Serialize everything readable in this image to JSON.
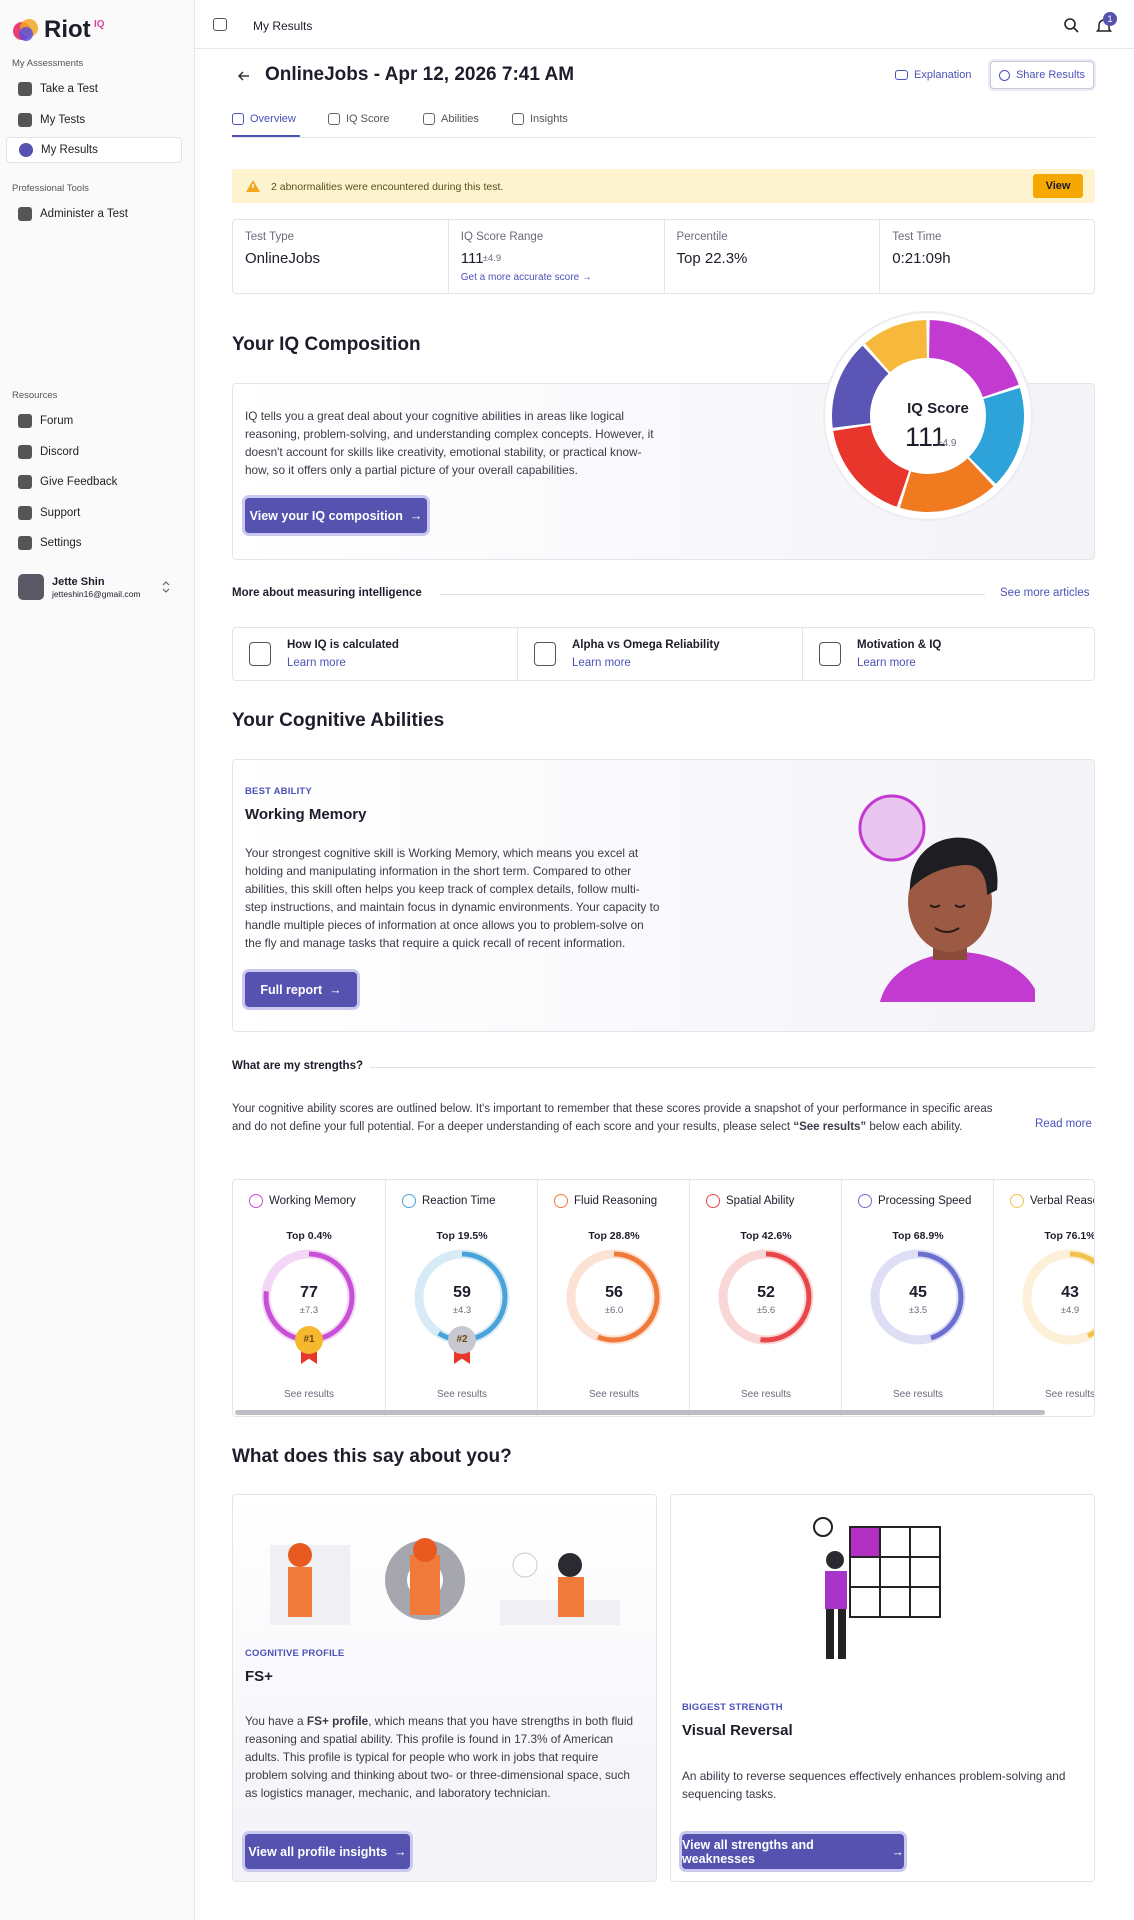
{
  "sidebar": {
    "brand": "Riot",
    "brand_suffix": "IQ",
    "sections": [
      {
        "title": "My Assessments",
        "items": [
          "Take a Test",
          "My Tests",
          "My Results"
        ]
      },
      {
        "title": "Professional Tools",
        "items": [
          "Administer a Test"
        ]
      },
      {
        "title": "Resources",
        "items": [
          "Forum",
          "Discord",
          "Give Feedback",
          "Support",
          "Settings"
        ]
      }
    ],
    "user": {
      "name": "Jette Shin",
      "email": "jetteshin16@gmail.com"
    }
  },
  "topbar": {
    "title": "My Results",
    "notifications": "1"
  },
  "header": {
    "title": "OnlineJobs - Apr 12, 2026 7:41 AM",
    "explanation": "Explanation",
    "share": "Share Results"
  },
  "tabs": [
    "Overview",
    "IQ Score",
    "Abilities",
    "Insights"
  ],
  "alert": {
    "text": "2 abnormalities were encountered during this test.",
    "button": "View"
  },
  "stats": [
    {
      "label": "Test Type",
      "value": "OnlineJobs"
    },
    {
      "label": "IQ Score Range",
      "value": "111",
      "error": "±4.9",
      "link": "Get a more accurate score"
    },
    {
      "label": "Percentile",
      "value": "Top 22.3%"
    },
    {
      "label": "Test Time",
      "value": "0:21:09h"
    }
  ],
  "composition": {
    "title": "Your IQ Composition",
    "text": "IQ tells you a great deal about your cognitive abilities in areas like logical reasoning, problem-solving, and understanding complex concepts. However, it doesn't account for skills like creativity, emotional stability, or practical know-how, so it offers only a partial picture of your overall capabilities.",
    "button": "View your IQ composition",
    "donut_label": "IQ Score",
    "score": "111",
    "error": "±4.9"
  },
  "articles": {
    "title": "More about measuring intelligence",
    "link": "See more articles",
    "items": [
      {
        "title": "How IQ is calculated",
        "link": "Learn more"
      },
      {
        "title": "Alpha vs Omega Reliability",
        "link": "Learn more"
      },
      {
        "title": "Motivation & IQ",
        "link": "Learn more"
      }
    ]
  },
  "abilities": {
    "title": "Your Cognitive Abilities",
    "best": {
      "eyebrow": "BEST ABILITY",
      "name": "Working Memory",
      "text": "Your strongest cognitive skill is Working Memory, which means you excel at holding and manipulating information in the short term. Compared to other abilities, this skill often helps you keep track of complex details, follow multi-step instructions, and maintain focus in dynamic environments. Your capacity to handle multiple pieces of information at once allows you to problem-solve on the fly and manage tasks that require a quick recall of recent information.",
      "button": "Full report"
    },
    "strengths_title": "What are my strengths?",
    "strengths_text_before": "Your cognitive ability scores are outlined below. It's important to remember that these scores provide a snapshot of your performance in specific areas and do not define your full potential. For a deeper understanding of each score and your results, please select ",
    "strengths_highlight": "“See results”",
    "strengths_text_after": " below each ability.",
    "read_more": "Read more",
    "cards": [
      {
        "name": "Working Memory",
        "percentile": "Top 0.4%",
        "score": "77",
        "error": "±7.3",
        "rank": "#1",
        "link": "See results",
        "color": "#c84fd6"
      },
      {
        "name": "Reaction Time",
        "percentile": "Top 19.5%",
        "score": "59",
        "error": "±4.3",
        "rank": "#2",
        "link": "See results",
        "color": "#4aa3d8"
      },
      {
        "name": "Fluid Reasoning",
        "percentile": "Top 28.8%",
        "score": "56",
        "error": "±6.0",
        "link": "See results",
        "color": "#f07a3a"
      },
      {
        "name": "Spatial Ability",
        "percentile": "Top 42.6%",
        "score": "52",
        "error": "±5.6",
        "link": "See results",
        "color": "#e8474a"
      },
      {
        "name": "Processing Speed",
        "percentile": "Top 68.9%",
        "score": "45",
        "error": "±3.5",
        "link": "See results",
        "color": "#6b6fcf"
      },
      {
        "name": "Verbal Reasoning",
        "percentile": "Top 76.1%",
        "score": "43",
        "error": "±4.9",
        "link": "See results",
        "color": "#f2c14e"
      }
    ]
  },
  "about": {
    "title": "What does this say about you?",
    "profile": {
      "eyebrow": "COGNITIVE PROFILE",
      "name": "FS+",
      "text_before": "You have a ",
      "highlight": "FS+ profile",
      "text_after": ", which means that you have strengths in both fluid reasoning and spatial ability. This profile is found in 17.3% of American adults. This profile is typical for people who work in jobs that require problem solving and thinking about two- or three-dimensional space, such as logistics manager, mechanic, and laboratory technician.",
      "button": "View all profile insights"
    },
    "strength": {
      "eyebrow": "BIGGEST STRENGTH",
      "name": "Visual Reversal",
      "text": "An ability to reverse sequences effectively enhances problem-solving and sequencing tasks.",
      "button": "View all strengths and weaknesses"
    }
  }
}
